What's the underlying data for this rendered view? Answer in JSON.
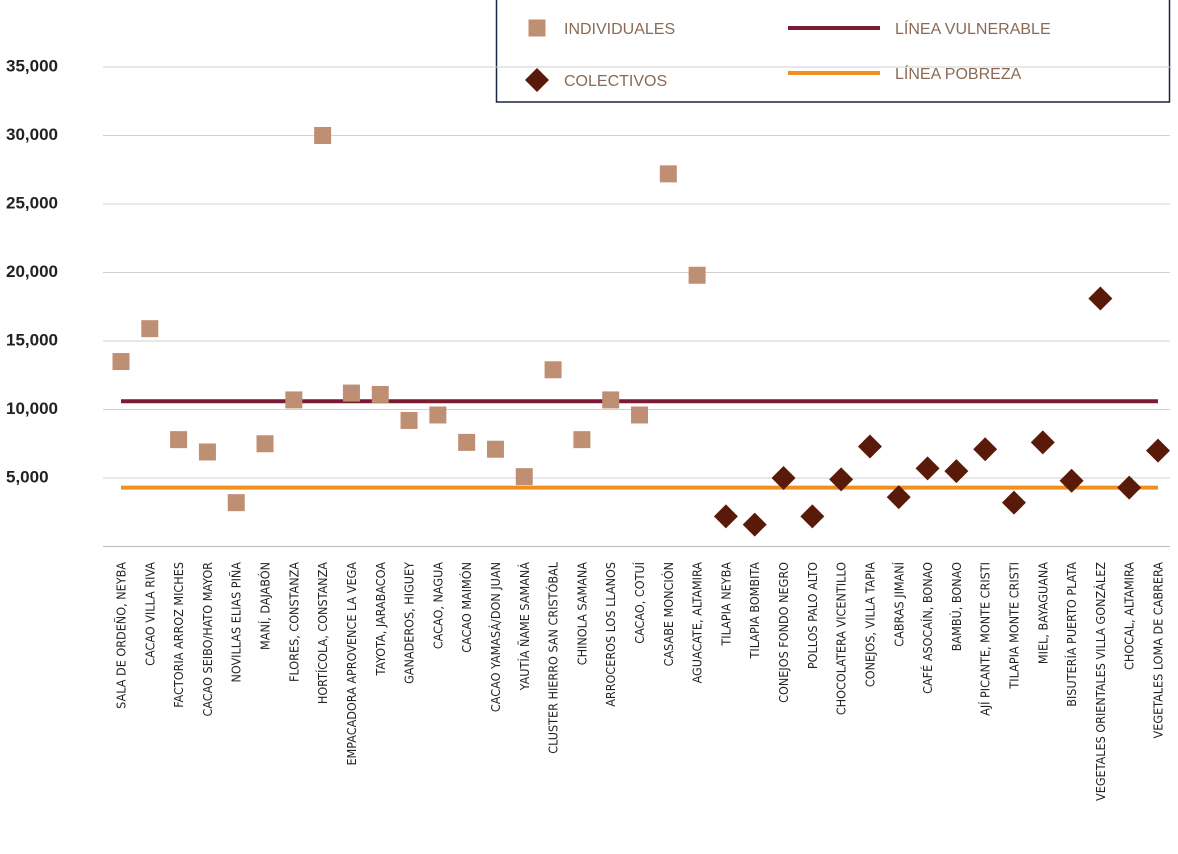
{
  "chart_data": {
    "type": "scatter",
    "categories": [
      "SALA DE ORDEÑO, NEYBA",
      "CACAO VILLA RIVA",
      "FACTORIA ARROZ MICHES",
      "CACAO SEIBO/HATO MAYOR",
      "NOVILLAS ELIAS PIÑA",
      "MANÍ, DAJABÓN",
      "FLORES, CONSTANZA",
      "HORTÍCOLA, CONSTANZA",
      "EMPACADORA APROVENCE LA VEGA",
      "TAYOTA, JARABACOA",
      "GANADEROS, HIGUEY",
      "CACAO, NAGUA",
      "CACAO MAIMÓN",
      "CACAO YAMASÁ/DON JUAN",
      "YAUTÍA ÑAME SAMANÁ",
      "CLUSTER HIERRO SAN CRISTÓBAL",
      "CHINOLA SAMANA",
      "ARROCEROS LOS LLANOS",
      "CACAO, COTUÍ",
      "CASABE MONCIÓN",
      "AGUACATE, ALTAMIRA",
      "TILAPIA NEYBA",
      "TILAPIA BOMBITA",
      "CONEJOS FONDO NEGRO",
      "POLLOS PALO ALTO",
      "CHOCOLATERA VICENTILLO",
      "CONEJOS, VILLA TAPIA",
      "CABRAS JIMANÍ",
      "CAFÉ ASOCAÍN, BONAO",
      "BAMBÚ, BONAO",
      "AJÍ PICANTE, MONTE CRISTI",
      "TILAPIA MONTE CRISTI",
      "MIEL, BAYAGUANA",
      "BISUTERÍA PUERTO PLATA",
      "VEGETALES ORIENTALES VILLA GONZÁLEZ",
      "CHOCAL, ALTAMIRA",
      "VEGETALES LOMA DE CABRERA"
    ],
    "series": [
      {
        "name": "INDIVIDUALES",
        "color": "#bf8f74",
        "marker": "square",
        "values": [
          13500,
          15900,
          7800,
          6900,
          3200,
          7500,
          10700,
          30000,
          11200,
          11100,
          9200,
          9600,
          7600,
          7100,
          5100,
          12900,
          7800,
          10700,
          9600,
          27200,
          19800,
          null,
          null,
          null,
          null,
          null,
          null,
          null,
          null,
          null,
          null,
          null,
          null,
          null,
          null,
          null,
          null
        ]
      },
      {
        "name": "COLECTIVOS",
        "color": "#5a1a0a",
        "marker": "diamond",
        "values": [
          null,
          null,
          null,
          null,
          null,
          null,
          null,
          null,
          null,
          null,
          null,
          null,
          null,
          null,
          null,
          null,
          null,
          null,
          null,
          null,
          null,
          2200,
          1600,
          5000,
          2200,
          4900,
          7300,
          3600,
          5700,
          5500,
          7100,
          3200,
          7600,
          4800,
          18100,
          4300,
          7000
        ]
      }
    ],
    "lines": [
      {
        "name": "LÍNEA VULNERABLE",
        "color": "#7b1a33",
        "value": 10600
      },
      {
        "name": "LÍNEA POBREZA",
        "color": "#f0901e",
        "value": 4300
      }
    ],
    "ylim": [
      0,
      38000
    ],
    "yticks": [
      {
        "value": 5000,
        "label": "5,000"
      },
      {
        "value": 10000,
        "label": "10,000"
      },
      {
        "value": 15000,
        "label": "15,000"
      },
      {
        "value": 20000,
        "label": "20,000"
      },
      {
        "value": 25000,
        "label": "25,000"
      },
      {
        "value": 30000,
        "label": "30,000"
      },
      {
        "value": 35000,
        "label": "35,000"
      }
    ],
    "grid": true
  }
}
